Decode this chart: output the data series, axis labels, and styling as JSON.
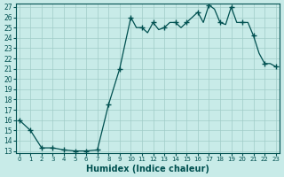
{
  "xlabel": "Humidex (Indice chaleur)",
  "ylabel": "",
  "bg_color": "#c8ebe8",
  "grid_color": "#a0ccc8",
  "line_color": "#005050",
  "marker_color": "#005050",
  "ylim": [
    13,
    27
  ],
  "xlim": [
    0,
    23
  ],
  "yticks": [
    13,
    14,
    15,
    16,
    17,
    18,
    19,
    20,
    21,
    22,
    23,
    24,
    25,
    26,
    27
  ],
  "xticks": [
    0,
    1,
    2,
    3,
    4,
    5,
    6,
    7,
    8,
    9,
    10,
    11,
    12,
    13,
    14,
    15,
    16,
    17,
    18,
    19,
    20,
    21,
    22,
    23
  ],
  "x": [
    0,
    1,
    2,
    3,
    4,
    5,
    6,
    7,
    8,
    9,
    10,
    10.5,
    11,
    11.5,
    12,
    12.5,
    13,
    13.5,
    14,
    14.5,
    15,
    15.5,
    16,
    16.5,
    17,
    17.5,
    18,
    18.5,
    19,
    19.5,
    20,
    20.5,
    21,
    21.5,
    22,
    22.5,
    23
  ],
  "y": [
    16.0,
    15.0,
    13.3,
    13.3,
    13.1,
    13.0,
    13.0,
    13.1,
    17.5,
    21.0,
    26.0,
    25.0,
    25.0,
    24.5,
    25.5,
    24.8,
    25.0,
    25.5,
    25.5,
    25.0,
    25.5,
    26.0,
    26.5,
    25.5,
    27.2,
    26.8,
    25.5,
    25.3,
    27.0,
    25.5,
    25.5,
    25.5,
    24.2,
    22.5,
    21.5,
    21.5,
    21.2
  ],
  "marker_x": [
    0,
    1,
    2,
    3,
    4,
    5,
    6,
    7,
    8,
    9,
    10,
    11,
    12,
    13,
    14,
    15,
    16,
    17,
    18,
    19,
    20,
    21,
    22,
    23
  ],
  "marker_y": [
    16.0,
    15.0,
    13.3,
    13.3,
    13.1,
    13.0,
    13.0,
    13.1,
    17.5,
    21.0,
    26.0,
    25.0,
    25.5,
    25.0,
    25.5,
    25.5,
    26.5,
    27.2,
    25.5,
    27.0,
    25.5,
    24.2,
    21.5,
    21.2
  ]
}
